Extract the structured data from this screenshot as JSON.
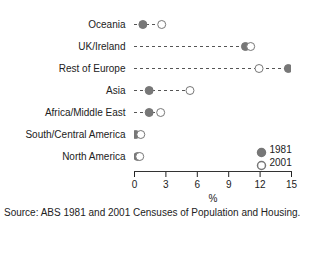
{
  "chart_data": {
    "type": "dot",
    "orientation": "horizontal",
    "categories": [
      "Oceania",
      "UK/Ireland",
      "Rest of Europe",
      "Asia",
      "Africa/Middle East",
      "South/Central America",
      "North America"
    ],
    "series": [
      {
        "name": "1981",
        "color": "#777777",
        "marker": "filled_circle",
        "values": [
          0.8,
          10.6,
          14.7,
          1.4,
          1.4,
          0.1,
          0.3
        ]
      },
      {
        "name": "2001",
        "color": "#777777",
        "marker": "open_circle",
        "values": [
          2.6,
          11.1,
          11.9,
          5.3,
          2.5,
          0.6,
          0.5
        ]
      }
    ],
    "xlabel": "%",
    "xlim": [
      0,
      15
    ],
    "xticks": [
      0,
      3,
      6,
      9,
      12,
      15
    ],
    "line_style": "dashed",
    "legend": "lower right",
    "caption": "Source: ABS 1981 and 2001 Censuses of Population and Housing."
  }
}
